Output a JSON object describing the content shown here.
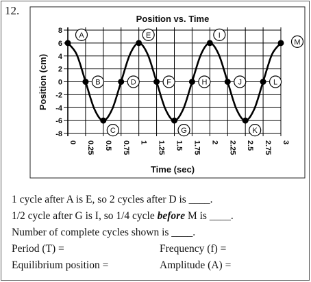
{
  "question_number": "12.",
  "chart_data": {
    "type": "line",
    "title": "Position vs. Time",
    "xlabel": "Time (sec)",
    "ylabel": "Position (cm)",
    "xlim": [
      0,
      3
    ],
    "ylim": [
      -8,
      8
    ],
    "x_ticks": [
      "0",
      "0.25",
      "0.5",
      "0.75",
      "1",
      "1.25",
      "1.5",
      "1.75",
      "2",
      "2.25",
      "2.5",
      "2.75",
      "3"
    ],
    "y_ticks": [
      "8",
      "6",
      "4",
      "2",
      "0",
      "-2",
      "-4",
      "-6",
      "-8"
    ],
    "grid": true,
    "series": [
      {
        "x": [
          0,
          0.125,
          0.25,
          0.375,
          0.5,
          0.625,
          0.75,
          0.875,
          1,
          1.125,
          1.25,
          1.375,
          1.5,
          1.625,
          1.75,
          1.875,
          2,
          2.125,
          2.25,
          2.375,
          2.5,
          2.625,
          2.75,
          2.875,
          3
        ],
        "y": [
          6,
          4.24,
          0,
          -4.24,
          -6,
          -4.24,
          0,
          4.24,
          6,
          4.24,
          0,
          -4.24,
          -6,
          -4.24,
          0,
          4.24,
          6,
          4.24,
          0,
          -4.24,
          -6,
          -4.24,
          0,
          4.24,
          6
        ]
      }
    ],
    "labeled_points": [
      {
        "label": "A",
        "x": 0,
        "y": 6
      },
      {
        "label": "B",
        "x": 0.25,
        "y": 0
      },
      {
        "label": "C",
        "x": 0.5,
        "y": -6
      },
      {
        "label": "D",
        "x": 0.75,
        "y": 0
      },
      {
        "label": "E",
        "x": 1,
        "y": 6
      },
      {
        "label": "F",
        "x": 1.25,
        "y": 0
      },
      {
        "label": "G",
        "x": 1.5,
        "y": -6
      },
      {
        "label": "H",
        "x": 1.75,
        "y": 0
      },
      {
        "label": "I",
        "x": 2,
        "y": 6
      },
      {
        "label": "J",
        "x": 2.25,
        "y": 0
      },
      {
        "label": "K",
        "x": 2.5,
        "y": -6
      },
      {
        "label": "L",
        "x": 2.75,
        "y": 0
      },
      {
        "label": "M",
        "x": 3,
        "y": 6
      }
    ]
  },
  "questions": {
    "line1": "1 cycle after A is E, so 2 cycles after D is ____.",
    "line2_pre": "1/2 cycle after G is I, so 1/4 cycle ",
    "line2_em": "before",
    "line2_post": " M is ____.",
    "line3": "Number of complete cycles shown is ____.",
    "period": "Period (T) =",
    "frequency": "Frequency (f) =",
    "equilibrium": "Equilibrium position =",
    "amplitude": "Amplitude (A) ="
  }
}
